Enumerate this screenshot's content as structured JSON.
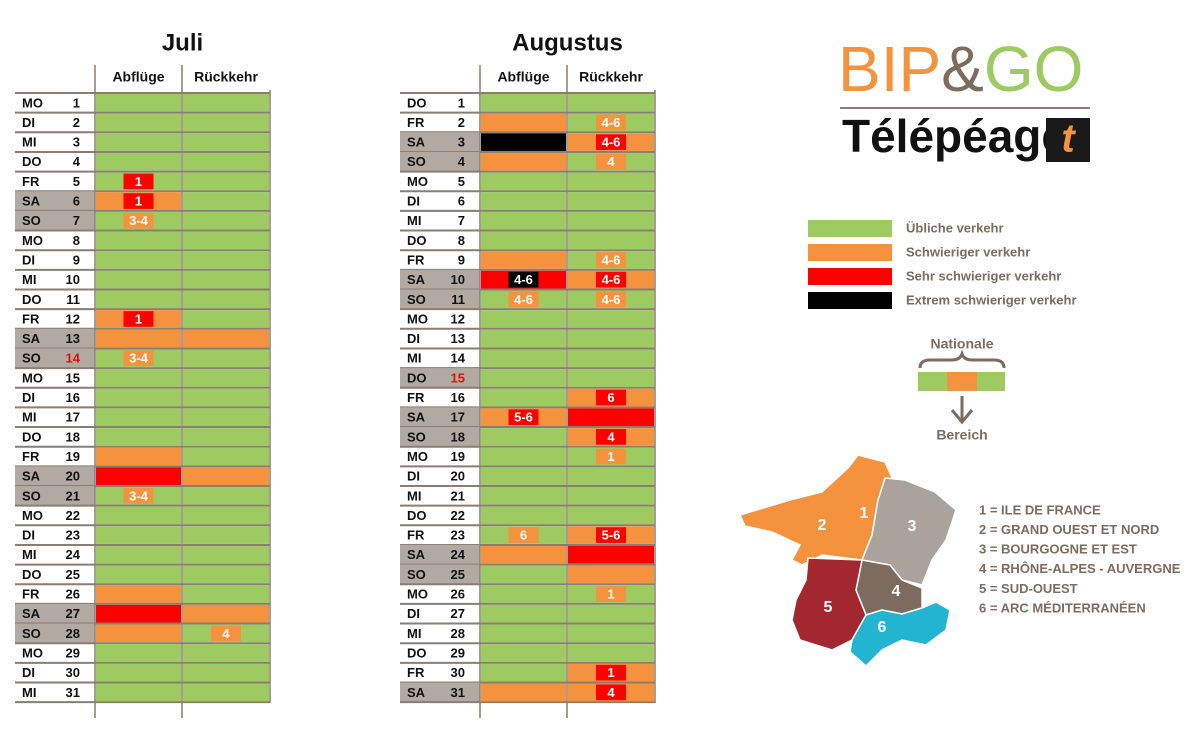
{
  "legend": {
    "levels": [
      {
        "label": "Übliche verkehr",
        "color": "#9dcb62"
      },
      {
        "label": "Schwieriger verkehr",
        "color": "#f5923e"
      },
      {
        "label": "Sehr schwieriger verkehr",
        "color": "#ff0000"
      },
      {
        "label": "Extrem schwieriger verkehr",
        "color": "#000000"
      }
    ]
  },
  "calendars": [
    {
      "title": "Juli",
      "columns": [
        "Abflüge",
        "Rückkehr"
      ],
      "rows": [
        {
          "wd": "MO",
          "day": 1,
          "dep": [
            0
          ],
          "ret": [
            0
          ]
        },
        {
          "wd": "DI",
          "day": 2,
          "dep": [
            0
          ],
          "ret": [
            0
          ]
        },
        {
          "wd": "MI",
          "day": 3,
          "dep": [
            0
          ],
          "ret": [
            0
          ]
        },
        {
          "wd": "DO",
          "day": 4,
          "dep": [
            0
          ],
          "ret": [
            0
          ]
        },
        {
          "wd": "FR",
          "day": 5,
          "dep": [
            0,
            "1",
            2
          ],
          "ret": [
            0
          ]
        },
        {
          "wd": "SA",
          "day": 6,
          "shaded": true,
          "dep": [
            1,
            "1",
            2
          ],
          "ret": [
            0
          ]
        },
        {
          "wd": "SO",
          "day": 7,
          "shaded": true,
          "dep": [
            0,
            "3-4",
            1
          ],
          "ret": [
            0
          ]
        },
        {
          "wd": "MO",
          "day": 8,
          "dep": [
            0
          ],
          "ret": [
            0
          ]
        },
        {
          "wd": "DI",
          "day": 9,
          "dep": [
            0
          ],
          "ret": [
            0
          ]
        },
        {
          "wd": "MI",
          "day": 10,
          "dep": [
            0
          ],
          "ret": [
            0
          ]
        },
        {
          "wd": "DO",
          "day": 11,
          "dep": [
            0
          ],
          "ret": [
            0
          ]
        },
        {
          "wd": "FR",
          "day": 12,
          "dep": [
            1,
            "1",
            2
          ],
          "ret": [
            0
          ]
        },
        {
          "wd": "SA",
          "day": 13,
          "shaded": true,
          "dep": [
            1
          ],
          "ret": [
            1
          ]
        },
        {
          "wd": "SO",
          "day": 14,
          "shaded": true,
          "holiday": true,
          "dep": [
            0,
            "3-4",
            1
          ],
          "ret": [
            0
          ]
        },
        {
          "wd": "MO",
          "day": 15,
          "dep": [
            0
          ],
          "ret": [
            0
          ]
        },
        {
          "wd": "DI",
          "day": 16,
          "dep": [
            0
          ],
          "ret": [
            0
          ]
        },
        {
          "wd": "MI",
          "day": 17,
          "dep": [
            0
          ],
          "ret": [
            0
          ]
        },
        {
          "wd": "DO",
          "day": 18,
          "dep": [
            0
          ],
          "ret": [
            0
          ]
        },
        {
          "wd": "FR",
          "day": 19,
          "dep": [
            1
          ],
          "ret": [
            0
          ]
        },
        {
          "wd": "SA",
          "day": 20,
          "shaded": true,
          "dep": [
            2
          ],
          "ret": [
            1
          ]
        },
        {
          "wd": "SO",
          "day": 21,
          "shaded": true,
          "dep": [
            0,
            "3-4",
            1
          ],
          "ret": [
            0
          ]
        },
        {
          "wd": "MO",
          "day": 22,
          "dep": [
            0
          ],
          "ret": [
            0
          ]
        },
        {
          "wd": "DI",
          "day": 23,
          "dep": [
            0
          ],
          "ret": [
            0
          ]
        },
        {
          "wd": "MI",
          "day": 24,
          "dep": [
            0
          ],
          "ret": [
            0
          ]
        },
        {
          "wd": "DO",
          "day": 25,
          "dep": [
            0
          ],
          "ret": [
            0
          ]
        },
        {
          "wd": "FR",
          "day": 26,
          "dep": [
            1
          ],
          "ret": [
            0
          ]
        },
        {
          "wd": "SA",
          "day": 27,
          "shaded": true,
          "dep": [
            2
          ],
          "ret": [
            1
          ]
        },
        {
          "wd": "SO",
          "day": 28,
          "shaded": true,
          "dep": [
            1
          ],
          "ret": [
            0,
            "4",
            1
          ]
        },
        {
          "wd": "MO",
          "day": 29,
          "dep": [
            0
          ],
          "ret": [
            0
          ]
        },
        {
          "wd": "DI",
          "day": 30,
          "dep": [
            0
          ],
          "ret": [
            0
          ]
        },
        {
          "wd": "MI",
          "day": 31,
          "dep": [
            0
          ],
          "ret": [
            0
          ]
        }
      ]
    },
    {
      "title": "Augustus",
      "columns": [
        "Abflüge",
        "Rückkehr"
      ],
      "rows": [
        {
          "wd": "DO",
          "day": 1,
          "dep": [
            0
          ],
          "ret": [
            0
          ]
        },
        {
          "wd": "FR",
          "day": 2,
          "dep": [
            1
          ],
          "ret": [
            0,
            "4-6",
            1
          ]
        },
        {
          "wd": "SA",
          "day": 3,
          "shaded": true,
          "dep": [
            3
          ],
          "ret": [
            1,
            "4-6",
            2
          ]
        },
        {
          "wd": "SO",
          "day": 4,
          "shaded": true,
          "dep": [
            1
          ],
          "ret": [
            0,
            "4",
            1
          ]
        },
        {
          "wd": "MO",
          "day": 5,
          "dep": [
            0
          ],
          "ret": [
            0
          ]
        },
        {
          "wd": "DI",
          "day": 6,
          "dep": [
            0
          ],
          "ret": [
            0
          ]
        },
        {
          "wd": "MI",
          "day": 7,
          "dep": [
            0
          ],
          "ret": [
            0
          ]
        },
        {
          "wd": "DO",
          "day": 8,
          "dep": [
            0
          ],
          "ret": [
            0
          ]
        },
        {
          "wd": "FR",
          "day": 9,
          "dep": [
            1
          ],
          "ret": [
            0,
            "4-6",
            1
          ]
        },
        {
          "wd": "SA",
          "day": 10,
          "shaded": true,
          "dep": [
            2,
            "4-6",
            3
          ],
          "ret": [
            1,
            "4-6",
            2
          ]
        },
        {
          "wd": "SO",
          "day": 11,
          "shaded": true,
          "dep": [
            0,
            "4-6",
            1
          ],
          "ret": [
            0,
            "4-6",
            1
          ]
        },
        {
          "wd": "MO",
          "day": 12,
          "dep": [
            0
          ],
          "ret": [
            0
          ]
        },
        {
          "wd": "DI",
          "day": 13,
          "dep": [
            0
          ],
          "ret": [
            0
          ]
        },
        {
          "wd": "MI",
          "day": 14,
          "dep": [
            0
          ],
          "ret": [
            0
          ]
        },
        {
          "wd": "DO",
          "day": 15,
          "shaded": true,
          "holiday": true,
          "dep": [
            0
          ],
          "ret": [
            0
          ]
        },
        {
          "wd": "FR",
          "day": 16,
          "dep": [
            0
          ],
          "ret": [
            1,
            "6",
            2
          ]
        },
        {
          "wd": "SA",
          "day": 17,
          "shaded": true,
          "dep": [
            1,
            "5-6",
            2
          ],
          "ret": [
            2
          ]
        },
        {
          "wd": "SO",
          "day": 18,
          "shaded": true,
          "dep": [
            0
          ],
          "ret": [
            1,
            "4",
            2
          ]
        },
        {
          "wd": "MO",
          "day": 19,
          "dep": [
            0
          ],
          "ret": [
            0,
            "1",
            1
          ]
        },
        {
          "wd": "DI",
          "day": 20,
          "dep": [
            0
          ],
          "ret": [
            0
          ]
        },
        {
          "wd": "MI",
          "day": 21,
          "dep": [
            0
          ],
          "ret": [
            0
          ]
        },
        {
          "wd": "DO",
          "day": 22,
          "dep": [
            0
          ],
          "ret": [
            0
          ]
        },
        {
          "wd": "FR",
          "day": 23,
          "dep": [
            0,
            "6",
            1
          ],
          "ret": [
            1,
            "5-6",
            2
          ]
        },
        {
          "wd": "SA",
          "day": 24,
          "shaded": true,
          "dep": [
            1
          ],
          "ret": [
            2
          ]
        },
        {
          "wd": "SO",
          "day": 25,
          "shaded": true,
          "dep": [
            0
          ],
          "ret": [
            1
          ]
        },
        {
          "wd": "MO",
          "day": 26,
          "dep": [
            0
          ],
          "ret": [
            0,
            "1",
            1
          ]
        },
        {
          "wd": "DI",
          "day": 27,
          "dep": [
            0
          ],
          "ret": [
            0
          ]
        },
        {
          "wd": "MI",
          "day": 28,
          "dep": [
            0
          ],
          "ret": [
            0
          ]
        },
        {
          "wd": "DO",
          "day": 29,
          "dep": [
            0
          ],
          "ret": [
            0
          ]
        },
        {
          "wd": "FR",
          "day": 30,
          "dep": [
            0
          ],
          "ret": [
            1,
            "1",
            2
          ]
        },
        {
          "wd": "SA",
          "day": 31,
          "shaded": true,
          "dep": [
            1
          ],
          "ret": [
            1,
            "4",
            2
          ]
        }
      ]
    }
  ],
  "logo": {
    "part1": "BIP",
    "part2": "&",
    "part3": "GO",
    "subtitle": "Télépéage",
    "icon": "t"
  },
  "diagram": {
    "top": "Nationale",
    "bottom": "Bereich"
  },
  "map": {
    "regions": [
      {
        "number": "1",
        "name": "1 = ILE DE FRANCE",
        "color": "#9dcb62"
      },
      {
        "number": "2",
        "name": "2 = GRAND OUEST ET NORD",
        "color": "#f5923e"
      },
      {
        "number": "3",
        "name": "3 = BOURGOGNE ET EST",
        "color": "#aaa29b"
      },
      {
        "number": "4",
        "name": "4 = RHÔNE-ALPES - AUVERGNE",
        "color": "#7e6b5f"
      },
      {
        "number": "5",
        "name": "5 = SUD-OUEST",
        "color": "#a2272f"
      },
      {
        "number": "6",
        "name": "6 = ARC MÉDITERRANÉEN",
        "color": "#22b4d1"
      }
    ]
  }
}
